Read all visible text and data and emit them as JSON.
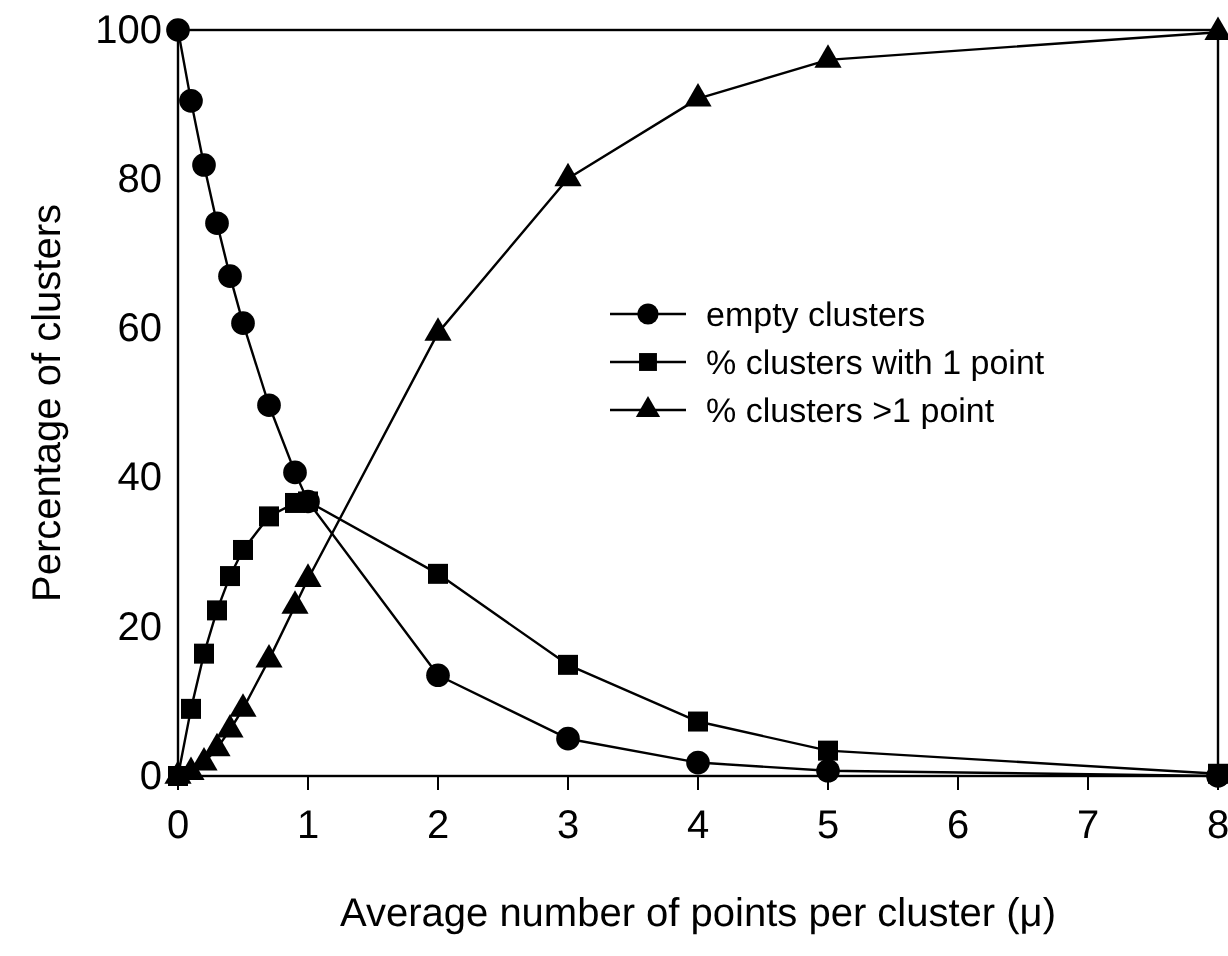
{
  "chart_data": {
    "type": "line",
    "xlabel": "Average number of points per cluster (μ)",
    "ylabel": "Percentage of clusters",
    "x": [
      0,
      0.1,
      0.2,
      0.3,
      0.4,
      0.5,
      0.7,
      0.9,
      1,
      2,
      3,
      4,
      5,
      8
    ],
    "series": [
      {
        "name": "empty clusters",
        "color": "#000000",
        "marker": "circle",
        "values": [
          100,
          90.5,
          81.9,
          74.1,
          67,
          60.7,
          49.7,
          40.7,
          36.8,
          13.5,
          5,
          1.8,
          0.7,
          0
        ]
      },
      {
        "name": "% clusters with 1 point",
        "color": "#000000",
        "marker": "square",
        "values": [
          0,
          9,
          16.4,
          22.2,
          26.8,
          30.3,
          34.8,
          36.6,
          36.8,
          27.1,
          14.9,
          7.3,
          3.4,
          0.3
        ]
      },
      {
        "name": "% clusters >1 point",
        "color": "#000000",
        "marker": "triangle",
        "values": [
          0,
          0.5,
          1.8,
          3.7,
          6.2,
          9,
          15.6,
          22.8,
          26.4,
          59.4,
          80.1,
          90.8,
          96,
          99.7
        ]
      }
    ],
    "xlim": [
      0,
      8
    ],
    "xticks": [
      0,
      1,
      2,
      3,
      4,
      5,
      6,
      7,
      8
    ],
    "ylim": [
      0,
      100
    ],
    "yticks": [
      0,
      20,
      40,
      60,
      80,
      100
    ],
    "grid": false,
    "legend": "right",
    "line_style": "solid"
  }
}
